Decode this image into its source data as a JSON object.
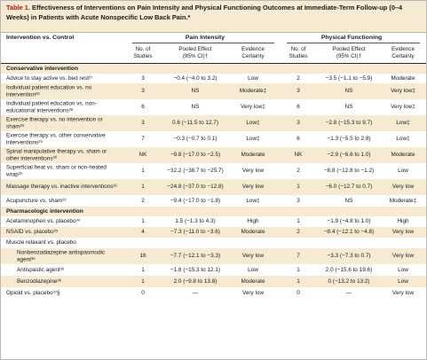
{
  "title": {
    "label": "Table 1.",
    "text": "Effectiveness of Interventions on Pain Intensity and Physical Functioning Outcomes at Immediate-Term Follow-up (0–4 Weeks) in Patients with Acute Nonspecific Low Back Pain.*"
  },
  "header": {
    "intervention": "Intervention vs. Control",
    "pain_intensity": "Pain Intensity",
    "physical_functioning": "Physical Functioning",
    "studies_line1": "No. of",
    "studies_line2": "Studies",
    "pooled_line1": "Pooled Effect",
    "pooled_line2": "(95% CI)†",
    "evidence_line1": "Evidence",
    "evidence_line2": "Certainty"
  },
  "rows": [
    {
      "type": "section",
      "label": "Conservative intervention"
    },
    {
      "label": "Advice to stay active vs. bed rest²⁷",
      "pn": "3",
      "pe": "−0.4 (−4.0 to 3.2)",
      "pc": "Low",
      "fn": "2",
      "fe": "−3.5 (−1.1 to −5.9)",
      "fc": "Moderate"
    },
    {
      "label": "Individual patient education vs. no intervention²⁸",
      "pn": "3",
      "pe": "NS",
      "pc": "Moderate‡",
      "fn": "3",
      "fe": "NS",
      "fc": "Very low‡"
    },
    {
      "label": "Individual patient education vs. non-educational interventions²⁸",
      "pn": "6",
      "pe": "NS",
      "pc": "Very low‡",
      "fn": "6",
      "fe": "NS",
      "fc": "Very low‡"
    },
    {
      "label": "Exercise therapy vs. no intervention or sham²⁹",
      "pn": "3",
      "pe": "0.6 (−11.5 to 12.7)",
      "pc": "Low‡",
      "fn": "3",
      "fe": "−2.8 (−15.3 to 9.7)",
      "fc": "Low‡"
    },
    {
      "label": "Exercise therapy vs. other conservative interventions²⁹",
      "pn": "7",
      "pe": "−0.3 (−0.7 to 0.1)",
      "pc": "Low‡",
      "fn": "6",
      "fe": "−1.3 (−5.5 to 2.8)",
      "fc": "Low‡"
    },
    {
      "label": "Spinal manipulative therapy vs. sham or other interventions³⁰",
      "pn": "NK",
      "pe": "−9.8 (−17.0 to −2.5)",
      "pc": "Moderate",
      "fn": "NK",
      "fe": "−2.9 (−6.6 to 1.0)",
      "fc": "Moderate"
    },
    {
      "label": "Superficial heat vs. sham or non-heated wrap³¹",
      "pn": "1",
      "pe": "−32.2 (−38.7 to −25.7)",
      "pc": "Very low",
      "fn": "2",
      "fe": "−8.8 (−12.8 to −1.2)",
      "fc": "Low"
    },
    {
      "label": "Massage therapy vs. inactive interventions³²",
      "pn": "1",
      "pe": "−24.8 (−37.0 to −12.8)",
      "pc": "Very low",
      "fn": "1",
      "fe": "−6.0 (−12.7 to 0.7)",
      "fc": "Very low"
    },
    {
      "label": "Acupuncture vs. sham³³",
      "pn": "2",
      "pe": "−9.4 (−17.0 to −1.8)",
      "pc": "Low‡",
      "fn": "3",
      "fe": "NS",
      "fc": "Moderate‡"
    },
    {
      "type": "section",
      "label": "Pharmacologic intervention"
    },
    {
      "label": "Acetaminophen vs. placebo³⁴",
      "pn": "1",
      "pe": "1.5 (−1.3 to 4.3)",
      "pc": "High",
      "fn": "1",
      "fe": "−1.9 (−4.8 to 1.0)",
      "fc": "High"
    },
    {
      "label": "NSAID vs. placebo³⁵",
      "pn": "4",
      "pe": "−7.3 (−11.0 to −3.6)",
      "pc": "Moderate",
      "fn": "2",
      "fe": "−8.4 (−12.1 to −4.8)",
      "fc": "Very low"
    },
    {
      "label": "Muscle relaxant vs. placebo",
      "pn": "",
      "pe": "",
      "pc": "",
      "fn": "",
      "fe": "",
      "fc": ""
    },
    {
      "label": "Nonbenzodiazepine antispasmodic agent³⁶",
      "indent": true,
      "pn": "16",
      "pe": "−7.7 (−12.1 to −3.3)",
      "pc": "Very low",
      "fn": "7",
      "fe": "−3.3 (−7.3 to 0.7)",
      "fc": "Very low"
    },
    {
      "label": "Antispastic agent³⁶",
      "indent": true,
      "pn": "1",
      "pe": "−1.6 (−15.3 to 12.1)",
      "pc": "Low",
      "fn": "1",
      "fe": "2.0 (−15.6 to 19.6)",
      "fc": "Low"
    },
    {
      "label": "Benzodiazepine³⁶",
      "indent": true,
      "pn": "1",
      "pe": "2.0 (−9.8 to 13.8)",
      "pc": "Moderate",
      "fn": "1",
      "fe": "0 (−13.2 to 13.2)",
      "fc": "Low"
    },
    {
      "label": "Opioid vs. placebo³⁷§",
      "pn": "0",
      "pe": "—",
      "pc": "Very low",
      "fn": "0",
      "fe": "—",
      "fc": "Very low"
    }
  ]
}
